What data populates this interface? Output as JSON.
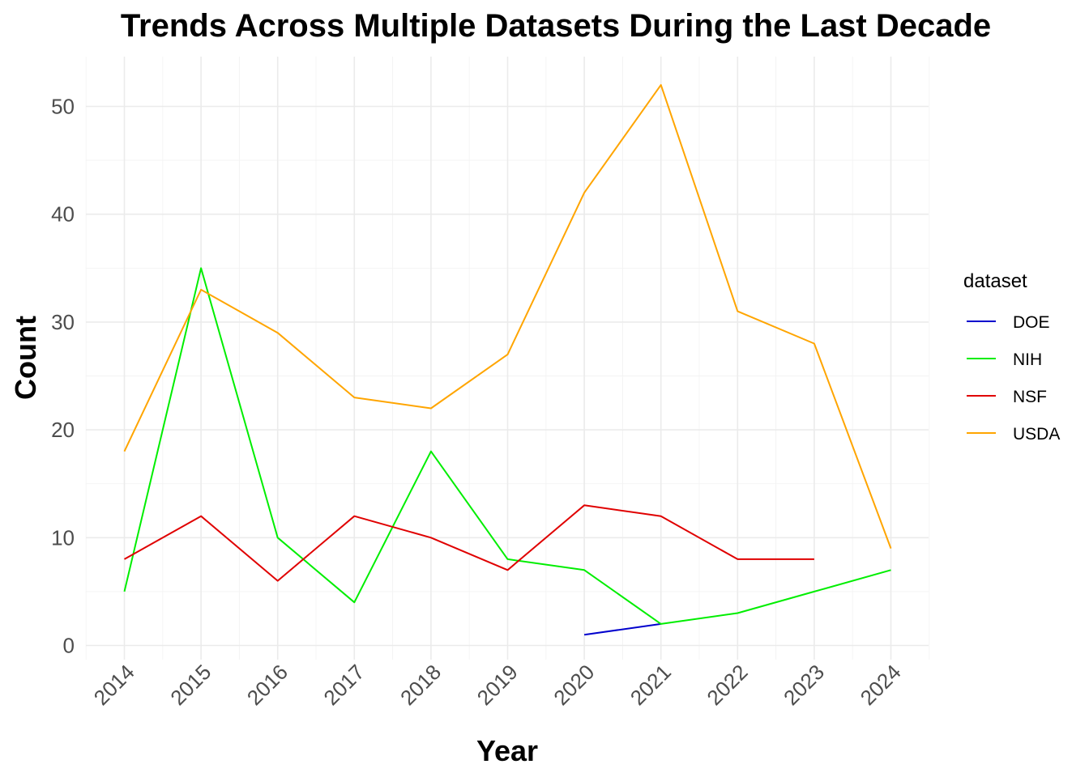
{
  "chart_data": {
    "type": "line",
    "title": "Trends Across Multiple Datasets During the Last Decade",
    "xlabel": "Year",
    "ylabel": "Count",
    "x": [
      "2014",
      "2015",
      "2016",
      "2017",
      "2018",
      "2019",
      "2020",
      "2021",
      "2022",
      "2023",
      "2024"
    ],
    "ylim": [
      0,
      52
    ],
    "yticks": [
      "0",
      "10",
      "20",
      "30",
      "40",
      "50"
    ],
    "grid": true,
    "legend": {
      "title": "dataset",
      "placement": "right"
    },
    "series": [
      {
        "name": "DOE",
        "color": "#0000cd",
        "x": [
          "2020",
          "2021"
        ],
        "values": [
          1,
          2
        ]
      },
      {
        "name": "NIH",
        "color": "#00ee00",
        "x": [
          "2014",
          "2015",
          "2016",
          "2017",
          "2018",
          "2019",
          "2020",
          "2021",
          "2022",
          "2023",
          "2024"
        ],
        "values": [
          5,
          35,
          10,
          4,
          18,
          8,
          7,
          2,
          3,
          5,
          7
        ]
      },
      {
        "name": "NSF",
        "color": "#e00000",
        "x": [
          "2014",
          "2015",
          "2016",
          "2017",
          "2018",
          "2019",
          "2020",
          "2021",
          "2022",
          "2023"
        ],
        "values": [
          8,
          12,
          6,
          12,
          10,
          7,
          13,
          12,
          8,
          8
        ]
      },
      {
        "name": "USDA",
        "color": "#ffa500",
        "x": [
          "2014",
          "2015",
          "2016",
          "2017",
          "2018",
          "2019",
          "2020",
          "2021",
          "2022",
          "2023",
          "2024"
        ],
        "values": [
          18,
          33,
          29,
          23,
          22,
          27,
          42,
          52,
          31,
          28,
          9
        ]
      }
    ]
  }
}
